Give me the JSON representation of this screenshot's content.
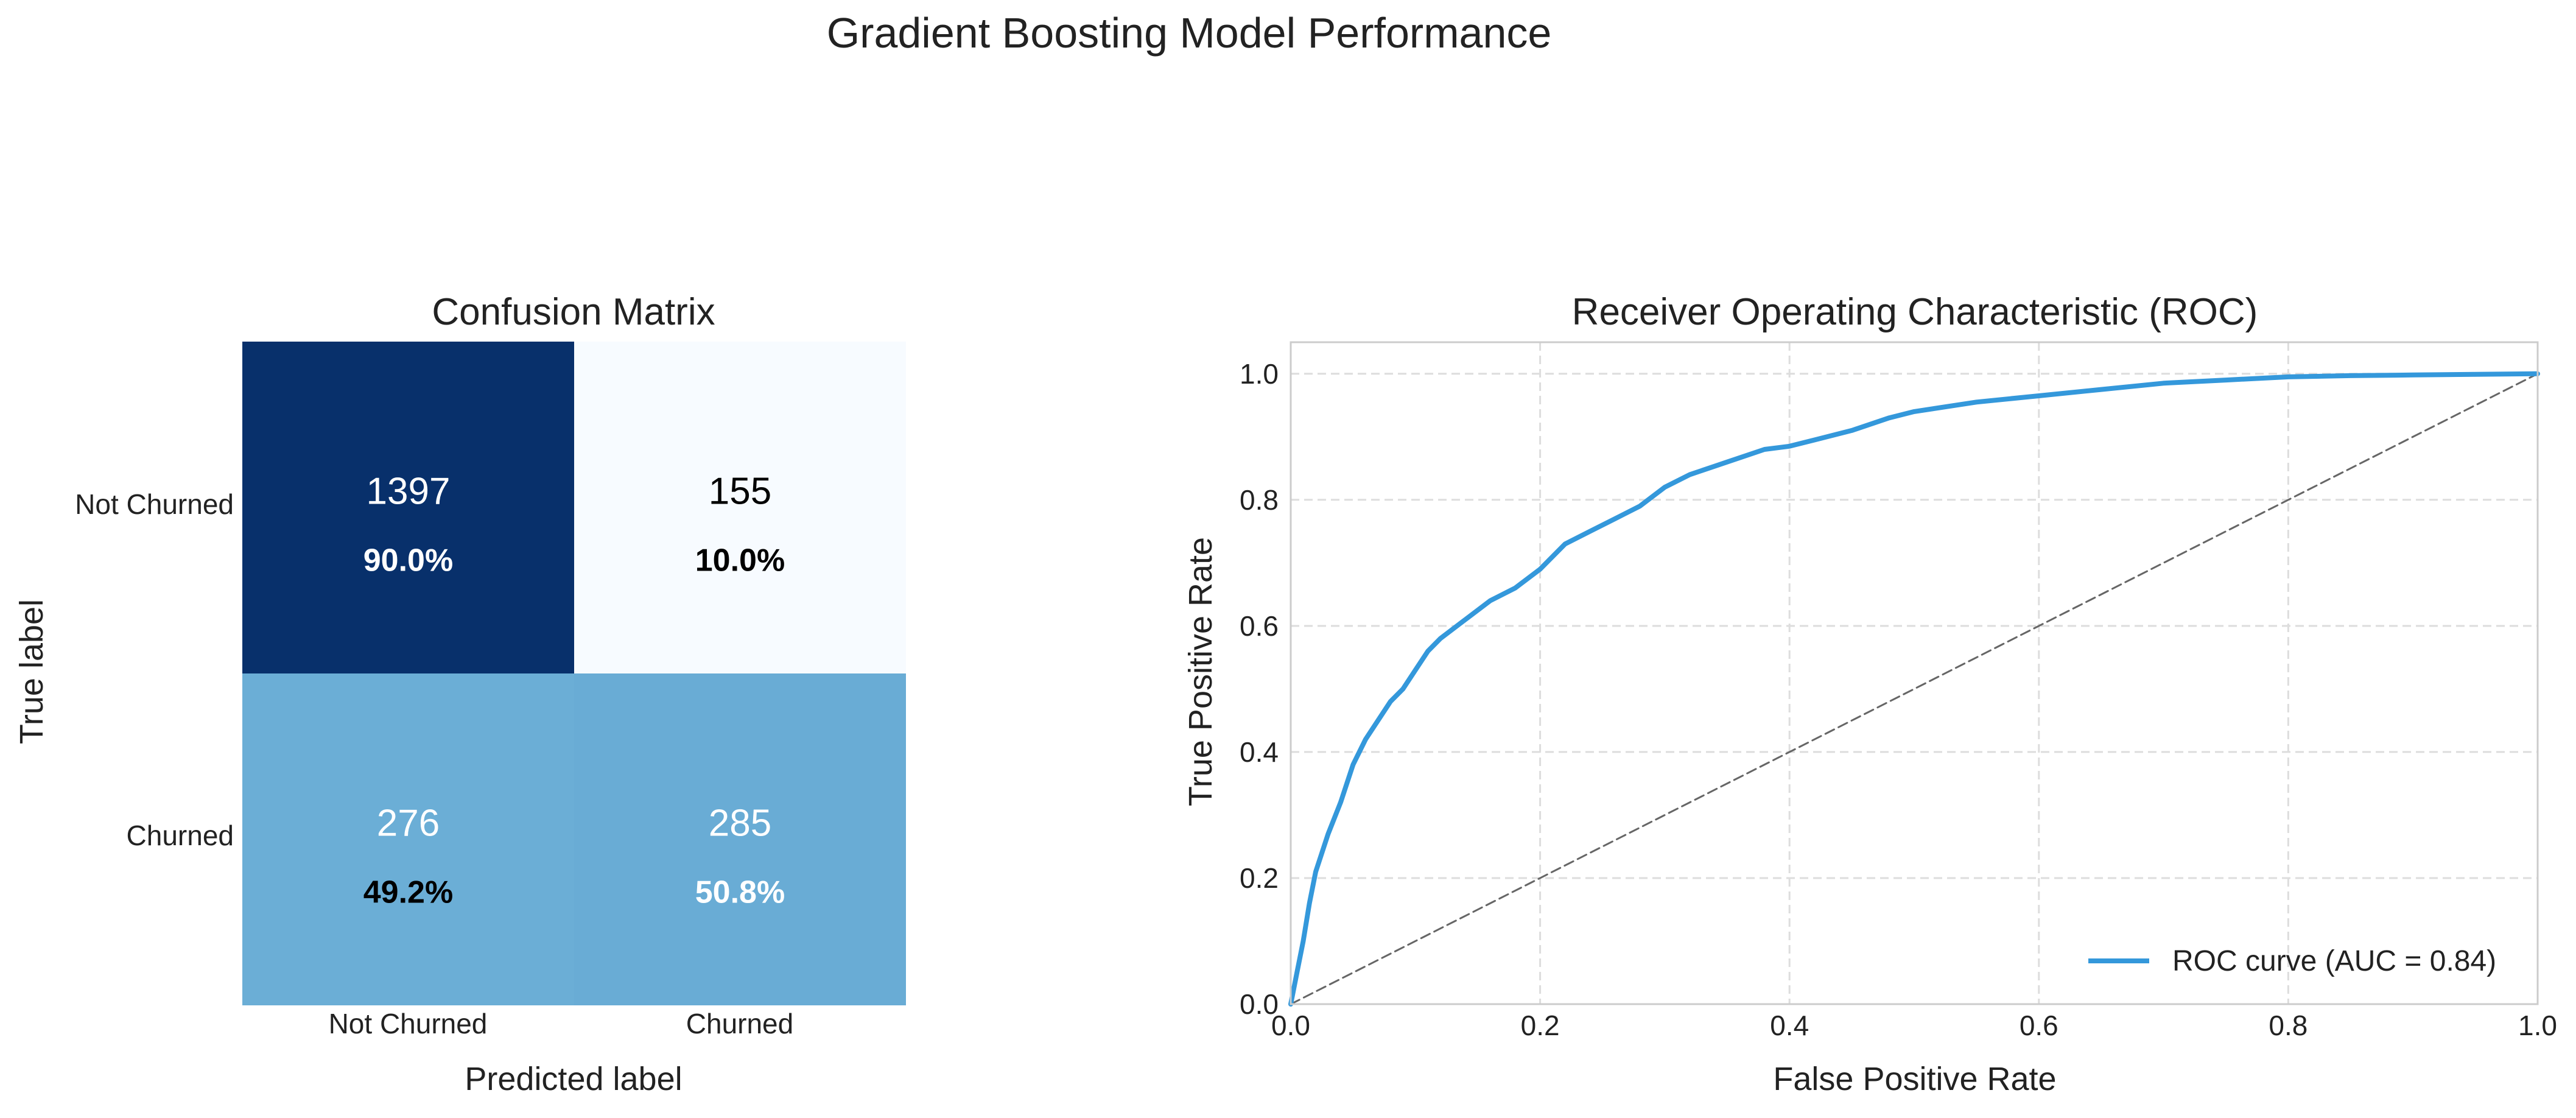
{
  "figure": {
    "suptitle": "Gradient Boosting Model Performance"
  },
  "chart_data": [
    {
      "type": "heatmap",
      "title": "Confusion Matrix",
      "xlabel": "Predicted label",
      "ylabel": "True label",
      "x_categories": [
        "Not Churned",
        "Churned"
      ],
      "y_categories": [
        "Not Churned",
        "Churned"
      ],
      "colormap": "Blues",
      "colors": {
        "tp_cell": "#08306b",
        "fp_cell": "#f7fbff",
        "fn_cell": "#6baed6",
        "churn_cell": "#69acd5",
        "dark_text": "#000000",
        "light_text": "#ffffff"
      },
      "cells": [
        {
          "row": 0,
          "col": 0,
          "count": "1397",
          "percent": "90.0%",
          "color": "#08306b",
          "text_color": "#ffffff"
        },
        {
          "row": 0,
          "col": 1,
          "count": "155",
          "percent": "10.0%",
          "color": "#f7fbff",
          "text_color": "#000000"
        },
        {
          "row": 1,
          "col": 0,
          "count": "276",
          "percent": "49.2%",
          "color": "#6baed6",
          "text_color": "#ffffff",
          "percent_color": "#000000"
        },
        {
          "row": 1,
          "col": 1,
          "count": "285",
          "percent": "50.8%",
          "color": "#69acd5",
          "text_color": "#ffffff"
        }
      ]
    },
    {
      "type": "line",
      "title": "Receiver Operating Characteristic (ROC)",
      "xlabel": "False Positive Rate",
      "ylabel": "True Positive Rate",
      "xlim": [
        0.0,
        1.0
      ],
      "ylim": [
        0.0,
        1.05
      ],
      "xticks": [
        "0.0",
        "0.2",
        "0.4",
        "0.6",
        "0.8",
        "1.0"
      ],
      "yticks": [
        "0.0",
        "0.2",
        "0.4",
        "0.6",
        "0.8",
        "1.0"
      ],
      "grid": true,
      "legend_position": "lower-right",
      "series": [
        {
          "name": "ROC curve (AUC = 0.84)",
          "color": "#3498db",
          "x": [
            0.0,
            0.005,
            0.01,
            0.015,
            0.02,
            0.03,
            0.04,
            0.05,
            0.06,
            0.07,
            0.08,
            0.09,
            0.1,
            0.11,
            0.12,
            0.14,
            0.16,
            0.18,
            0.2,
            0.22,
            0.24,
            0.26,
            0.28,
            0.3,
            0.32,
            0.35,
            0.38,
            0.4,
            0.42,
            0.45,
            0.48,
            0.5,
            0.55,
            0.6,
            0.65,
            0.7,
            0.75,
            0.8,
            0.85,
            0.9,
            0.95,
            1.0
          ],
          "y": [
            0.0,
            0.05,
            0.1,
            0.16,
            0.21,
            0.27,
            0.32,
            0.38,
            0.42,
            0.45,
            0.48,
            0.5,
            0.53,
            0.56,
            0.58,
            0.61,
            0.64,
            0.66,
            0.69,
            0.73,
            0.75,
            0.77,
            0.79,
            0.82,
            0.84,
            0.86,
            0.88,
            0.885,
            0.895,
            0.91,
            0.93,
            0.94,
            0.955,
            0.965,
            0.975,
            0.985,
            0.99,
            0.995,
            0.997,
            0.998,
            0.999,
            1.0
          ]
        },
        {
          "name": "",
          "color": "#666666",
          "style": "dashed",
          "x": [
            0.0,
            1.0
          ],
          "y": [
            0.0,
            1.0
          ]
        }
      ]
    }
  ]
}
